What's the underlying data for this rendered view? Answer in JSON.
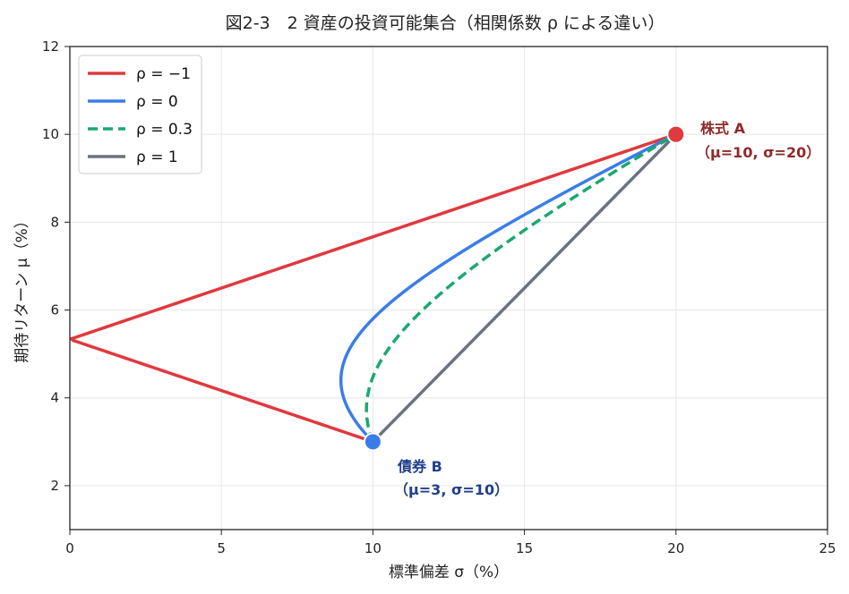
{
  "chart_data": {
    "type": "line",
    "title": "図2-3　2 資産の投資可能集合（相関係数 ρ による違い）",
    "xlabel": "標準偏差 σ（%）",
    "ylabel": "期待リターン μ（%）",
    "xlim": [
      0,
      25
    ],
    "ylim": [
      1,
      12
    ],
    "xticks": [
      "0",
      "5",
      "10",
      "15",
      "20",
      "25"
    ],
    "yticks": [
      "2",
      "4",
      "6",
      "8",
      "10",
      "12"
    ],
    "grid": true,
    "legend_position": "top-left",
    "assets": {
      "A": {
        "name": "株式 A",
        "params": "（μ=10,  σ=20）",
        "mu": 10,
        "sigma": 20,
        "color": "#e0393e"
      },
      "B": {
        "name": "債券 B",
        "params": "（μ=3,  σ=10）",
        "mu": 3,
        "sigma": 10,
        "color": "#3b7de8"
      }
    },
    "series": [
      {
        "name": "ρ = −1",
        "rho": -1,
        "color": "#e0393e",
        "dash": "solid"
      },
      {
        "name": "ρ = 0",
        "rho": 0,
        "color": "#3b7de8",
        "dash": "solid"
      },
      {
        "name": "ρ = 0.3",
        "rho": 0.3,
        "color": "#1aa870",
        "dash": "dashed"
      },
      {
        "name": "ρ = 1",
        "rho": 1,
        "color": "#6b7280",
        "dash": "solid"
      }
    ]
  }
}
